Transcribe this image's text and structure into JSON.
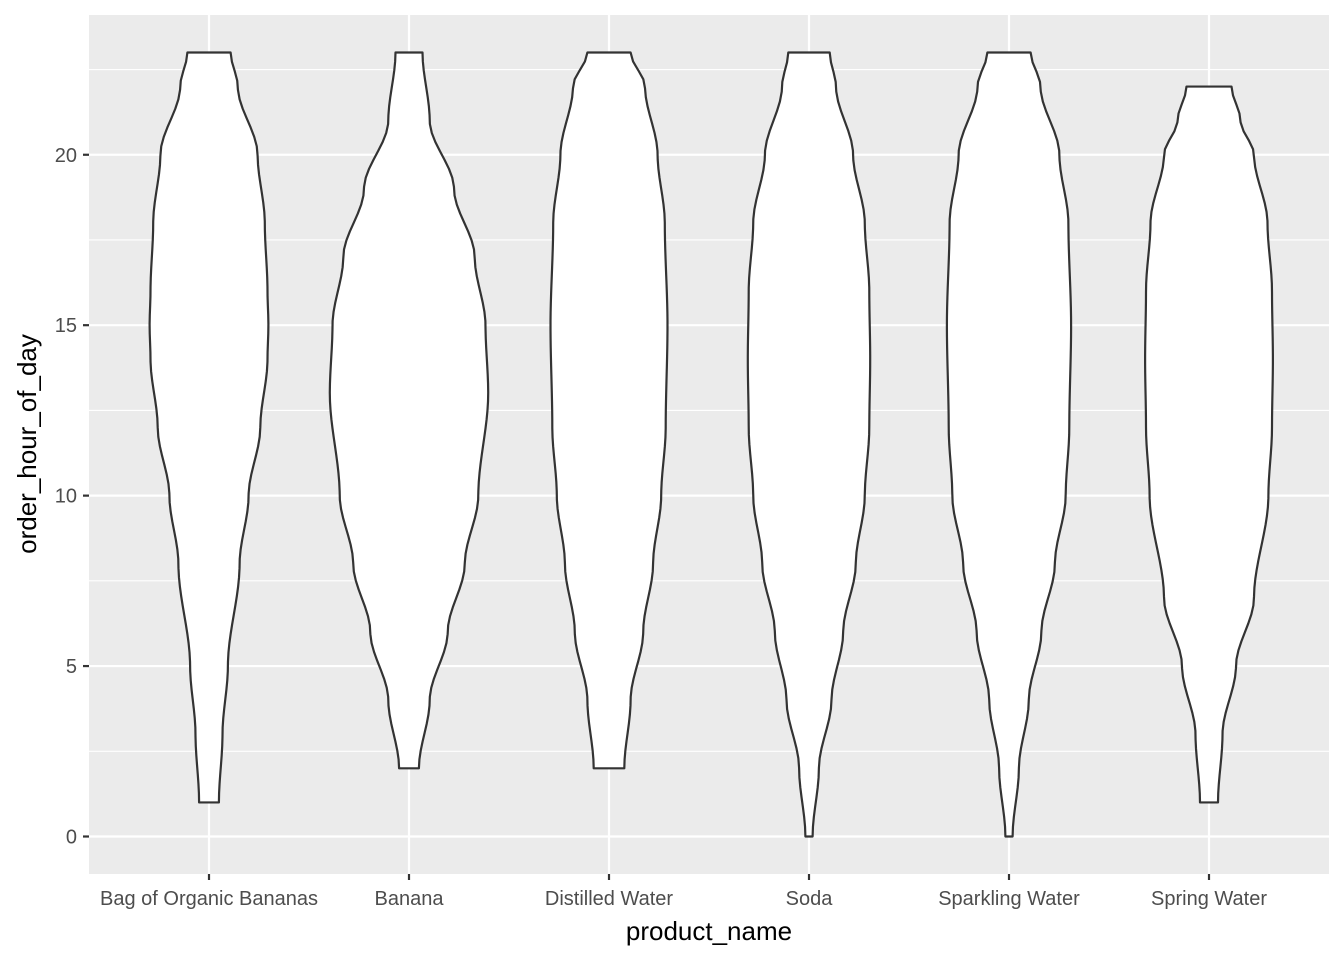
{
  "chart_data": {
    "type": "violin",
    "title": "",
    "xlabel": "product_name",
    "ylabel": "order_hour_of_day",
    "ylim": [
      -1.1,
      24.1
    ],
    "yticks": [
      0,
      5,
      10,
      15,
      20
    ],
    "y_minor_ticks": [
      2.5,
      7.5,
      12.5,
      17.5,
      22.5
    ],
    "grid": true,
    "legend": "none",
    "categories": [
      "Bag of Organic Bananas",
      "Banana",
      "Distilled Water",
      "Soda",
      "Sparkling Water",
      "Spring Water"
    ],
    "series": [
      {
        "name": "Bag of Organic Bananas",
        "min": 1,
        "max": 23,
        "profile": [
          [
            1,
            0.11
          ],
          [
            3,
            0.15
          ],
          [
            5,
            0.21
          ],
          [
            8,
            0.34
          ],
          [
            10,
            0.44
          ],
          [
            12,
            0.57
          ],
          [
            14,
            0.65
          ],
          [
            15,
            0.66
          ],
          [
            16,
            0.65
          ],
          [
            18,
            0.62
          ],
          [
            20,
            0.54
          ],
          [
            22,
            0.32
          ],
          [
            23,
            0.24
          ]
        ]
      },
      {
        "name": "Banana",
        "min": 2,
        "max": 23,
        "profile": [
          [
            2,
            0.11
          ],
          [
            4,
            0.23
          ],
          [
            6,
            0.43
          ],
          [
            8,
            0.62
          ],
          [
            10,
            0.77
          ],
          [
            13,
            0.88
          ],
          [
            15,
            0.85
          ],
          [
            17,
            0.73
          ],
          [
            19,
            0.5
          ],
          [
            21,
            0.23
          ],
          [
            23,
            0.15
          ]
        ]
      },
      {
        "name": "Distilled Water",
        "min": 2,
        "max": 23,
        "profile": [
          [
            2,
            0.17
          ],
          [
            4,
            0.24
          ],
          [
            6,
            0.38
          ],
          [
            8,
            0.49
          ],
          [
            10,
            0.58
          ],
          [
            12,
            0.63
          ],
          [
            15,
            0.65
          ],
          [
            18,
            0.62
          ],
          [
            20,
            0.54
          ],
          [
            22,
            0.4
          ],
          [
            23,
            0.24
          ]
        ]
      },
      {
        "name": "Soda",
        "min": 0,
        "max": 23,
        "profile": [
          [
            0,
            0.04
          ],
          [
            2,
            0.11
          ],
          [
            4,
            0.25
          ],
          [
            6,
            0.38
          ],
          [
            8,
            0.52
          ],
          [
            10,
            0.62
          ],
          [
            12,
            0.67
          ],
          [
            14,
            0.68
          ],
          [
            16,
            0.67
          ],
          [
            18,
            0.62
          ],
          [
            20,
            0.49
          ],
          [
            22,
            0.3
          ],
          [
            23,
            0.23
          ]
        ]
      },
      {
        "name": "Sparkling Water",
        "min": 0,
        "max": 23,
        "profile": [
          [
            0,
            0.04
          ],
          [
            2,
            0.11
          ],
          [
            4,
            0.22
          ],
          [
            6,
            0.36
          ],
          [
            8,
            0.51
          ],
          [
            10,
            0.63
          ],
          [
            12,
            0.67
          ],
          [
            15,
            0.69
          ],
          [
            18,
            0.66
          ],
          [
            20,
            0.56
          ],
          [
            22,
            0.35
          ],
          [
            23,
            0.24
          ]
        ]
      },
      {
        "name": "Spring Water",
        "min": 1,
        "max": 22,
        "profile": [
          [
            1,
            0.1
          ],
          [
            3,
            0.15
          ],
          [
            5,
            0.3
          ],
          [
            7,
            0.5
          ],
          [
            10,
            0.66
          ],
          [
            12,
            0.7
          ],
          [
            14,
            0.71
          ],
          [
            16,
            0.7
          ],
          [
            18,
            0.65
          ],
          [
            20,
            0.5
          ],
          [
            21,
            0.35
          ],
          [
            22,
            0.25
          ]
        ]
      }
    ]
  }
}
